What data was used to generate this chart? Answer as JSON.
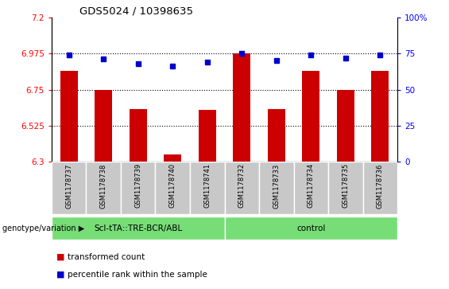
{
  "title": "GDS5024 / 10398635",
  "samples": [
    "GSM1178737",
    "GSM1178738",
    "GSM1178739",
    "GSM1178740",
    "GSM1178741",
    "GSM1178732",
    "GSM1178733",
    "GSM1178734",
    "GSM1178735",
    "GSM1178736"
  ],
  "bar_values": [
    6.865,
    6.75,
    6.63,
    6.345,
    6.625,
    6.975,
    6.63,
    6.865,
    6.75,
    6.865
  ],
  "percentile_values": [
    74,
    71,
    68,
    66,
    69,
    75,
    70,
    74,
    72,
    74
  ],
  "ylim_left": [
    6.3,
    7.2
  ],
  "ylim_right": [
    0,
    100
  ],
  "yticks_left": [
    6.3,
    6.525,
    6.75,
    6.975,
    7.2
  ],
  "ytick_labels_left": [
    "6.3",
    "6.525",
    "6.75",
    "6.975",
    "7.2"
  ],
  "yticks_right": [
    0,
    25,
    50,
    75,
    100
  ],
  "ytick_labels_right": [
    "0",
    "25",
    "50",
    "75",
    "100%"
  ],
  "hlines": [
    6.525,
    6.75,
    6.975
  ],
  "bar_color": "#cc0000",
  "dot_color": "#0000cc",
  "group1_label": "ScI-tTA::TRE-BCR/ABL",
  "group2_label": "control",
  "group1_count": 5,
  "group2_count": 5,
  "group_bg_color": "#77dd77",
  "tick_bg_color": "#c8c8c8",
  "legend_bar_label": "transformed count",
  "legend_dot_label": "percentile rank within the sample",
  "genotype_label": "genotype/variation"
}
